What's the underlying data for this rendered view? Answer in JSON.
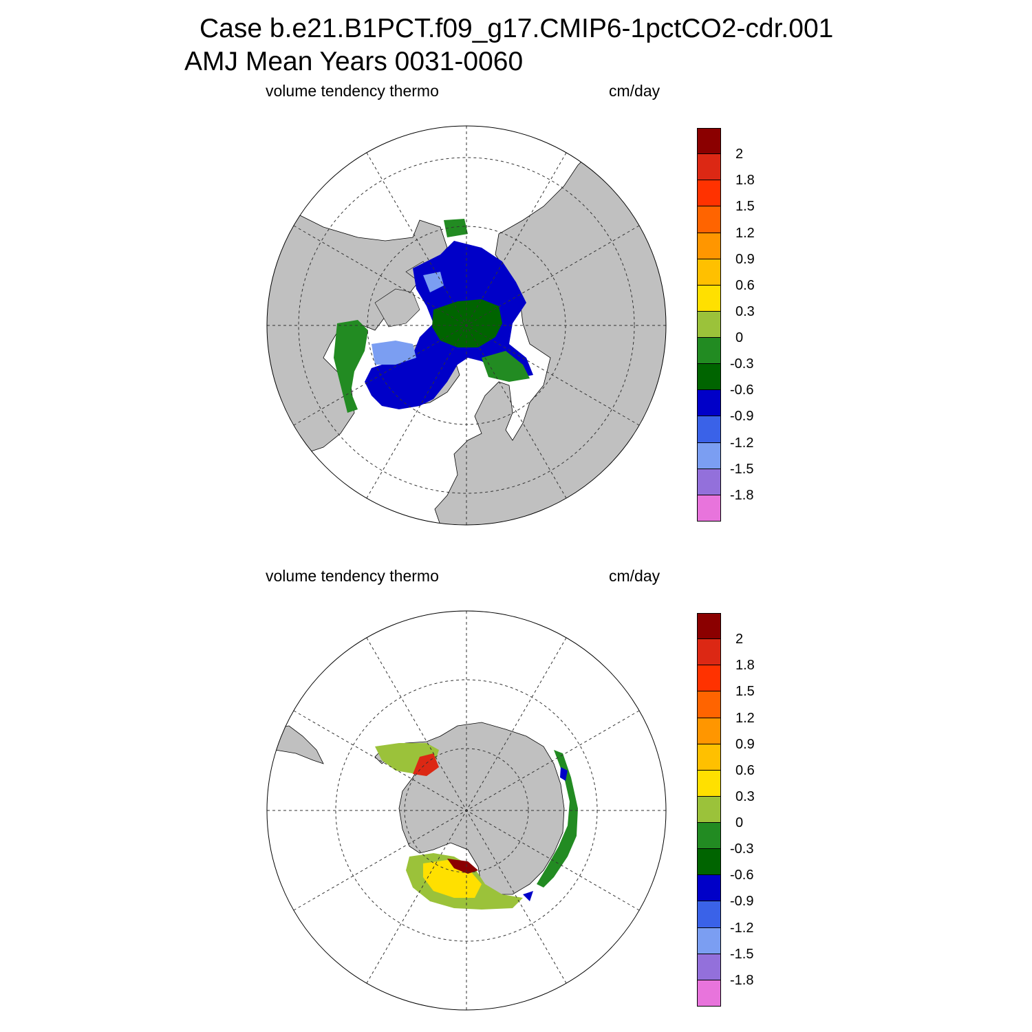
{
  "title": {
    "line1": "Case b.e21.B1PCT.f09_g17.CMIP6-1pctCO2-cdr.001",
    "line2": "AMJ Mean    Years 0031-0060"
  },
  "colorbar": {
    "colors": [
      "#e874dc",
      "#9370db",
      "#7b9ef2",
      "#3a62e8",
      "#0000c8",
      "#006400",
      "#228b22",
      "#9bc23a",
      "#ffe000",
      "#ffc000",
      "#ff9600",
      "#ff6400",
      "#ff3200",
      "#dc2814",
      "#8b0000"
    ],
    "tick_labels": [
      "-1.8",
      "-1.5",
      "-1.2",
      "-0.9",
      "-0.6",
      "-0.3",
      "0",
      "0.3",
      "0.6",
      "0.9",
      "1.2",
      "1.5",
      "1.8",
      "2"
    ]
  },
  "panels": [
    {
      "id": "north",
      "hemisphere": "north-polar-stereographic",
      "left_label": "volume tendency thermo",
      "right_label": "cm/day"
    },
    {
      "id": "south",
      "hemisphere": "south-polar-stereographic",
      "left_label": "volume tendency thermo",
      "right_label": "cm/day"
    }
  ]
}
